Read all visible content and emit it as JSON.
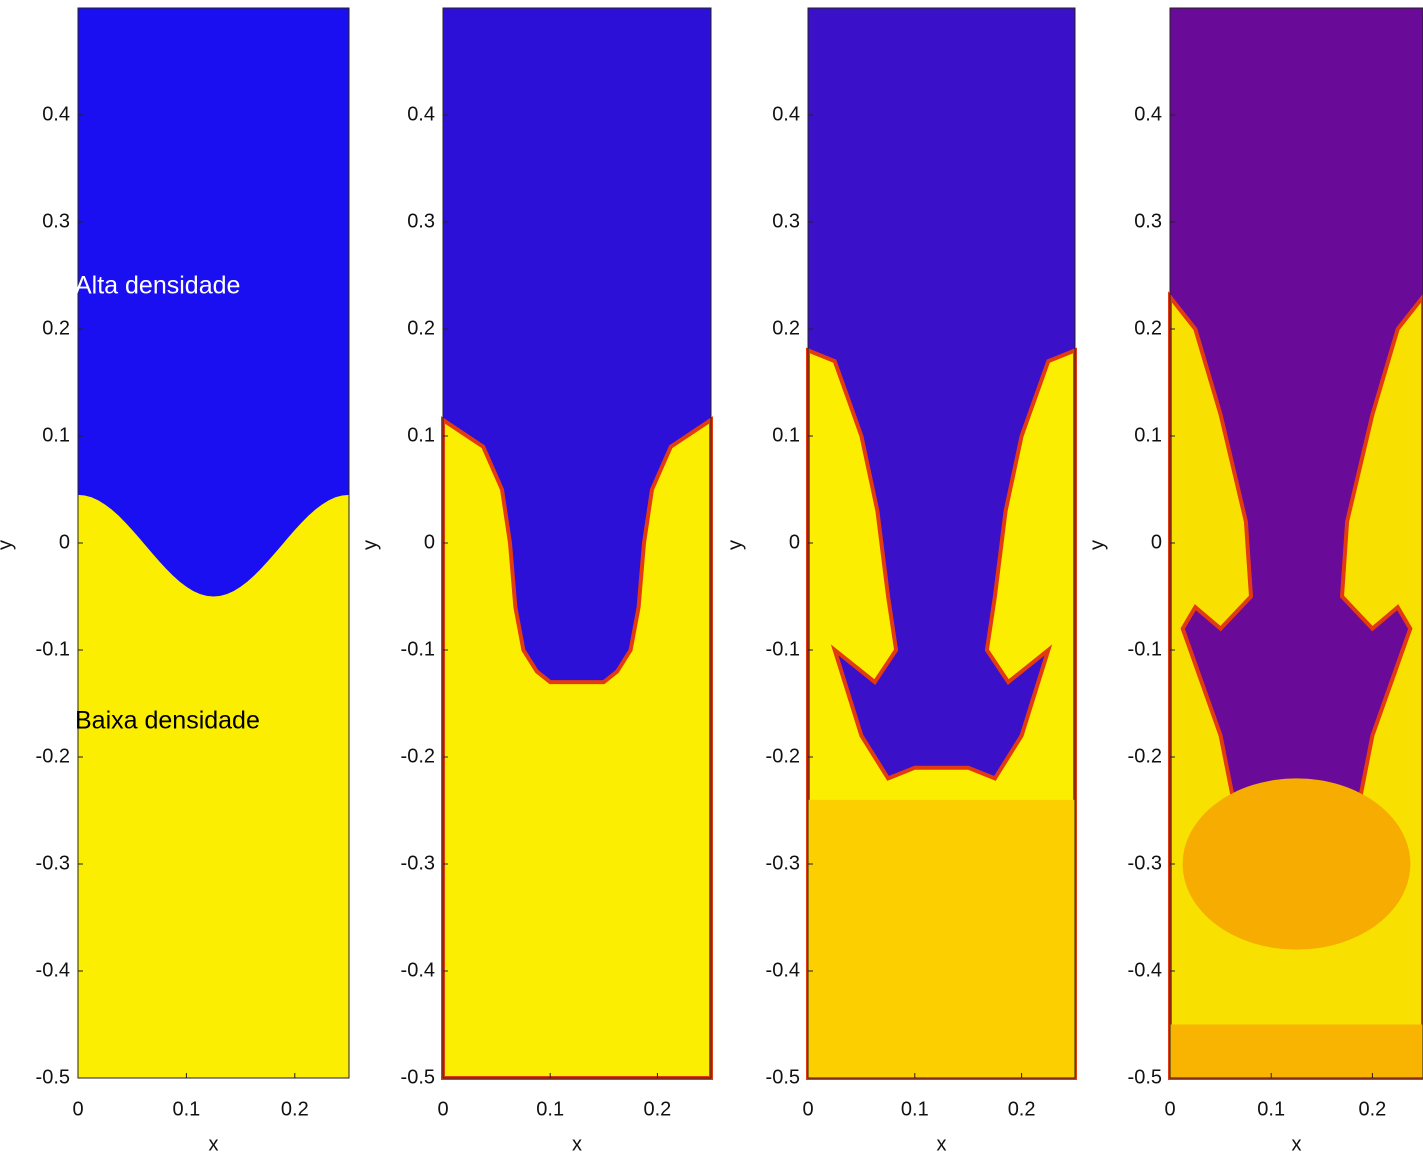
{
  "chart_data": [
    {
      "type": "heatmap",
      "xlabel": "x",
      "ylabel": "y",
      "xlim": [
        0,
        0.25
      ],
      "ylim": [
        -0.5,
        0.5
      ],
      "xticks": [
        0,
        0.1,
        0.2
      ],
      "yticks": [
        -0.5,
        -0.4,
        -0.3,
        -0.2,
        -0.1,
        0,
        0.1,
        0.2,
        0.3,
        0.4
      ],
      "annotations": [
        "Alta densidade",
        "Baixa densidade"
      ]
    },
    {
      "type": "heatmap",
      "xlabel": "x",
      "ylabel": "y",
      "xlim": [
        0,
        0.25
      ],
      "ylim": [
        -0.5,
        0.5
      ],
      "xticks": [
        0,
        0.1,
        0.2
      ],
      "yticks": [
        -0.5,
        -0.4,
        -0.3,
        -0.2,
        -0.1,
        0,
        0.1,
        0.2,
        0.3,
        0.4
      ]
    },
    {
      "type": "heatmap",
      "xlabel": "x",
      "ylabel": "y",
      "xlim": [
        0,
        0.25
      ],
      "ylim": [
        -0.5,
        0.5
      ],
      "xticks": [
        0,
        0.1,
        0.2
      ],
      "yticks": [
        -0.5,
        -0.4,
        -0.3,
        -0.2,
        -0.1,
        0,
        0.1,
        0.2,
        0.3,
        0.4
      ]
    },
    {
      "type": "heatmap",
      "xlabel": "x",
      "ylabel": "y",
      "xlim": [
        0,
        0.25
      ],
      "ylim": [
        -0.5,
        0.5
      ],
      "xticks": [
        0,
        0.1,
        0.2
      ],
      "yticks": [
        -0.5,
        -0.4,
        -0.3,
        -0.2,
        -0.1,
        0,
        0.1,
        0.2,
        0.3,
        0.4
      ]
    }
  ]
}
